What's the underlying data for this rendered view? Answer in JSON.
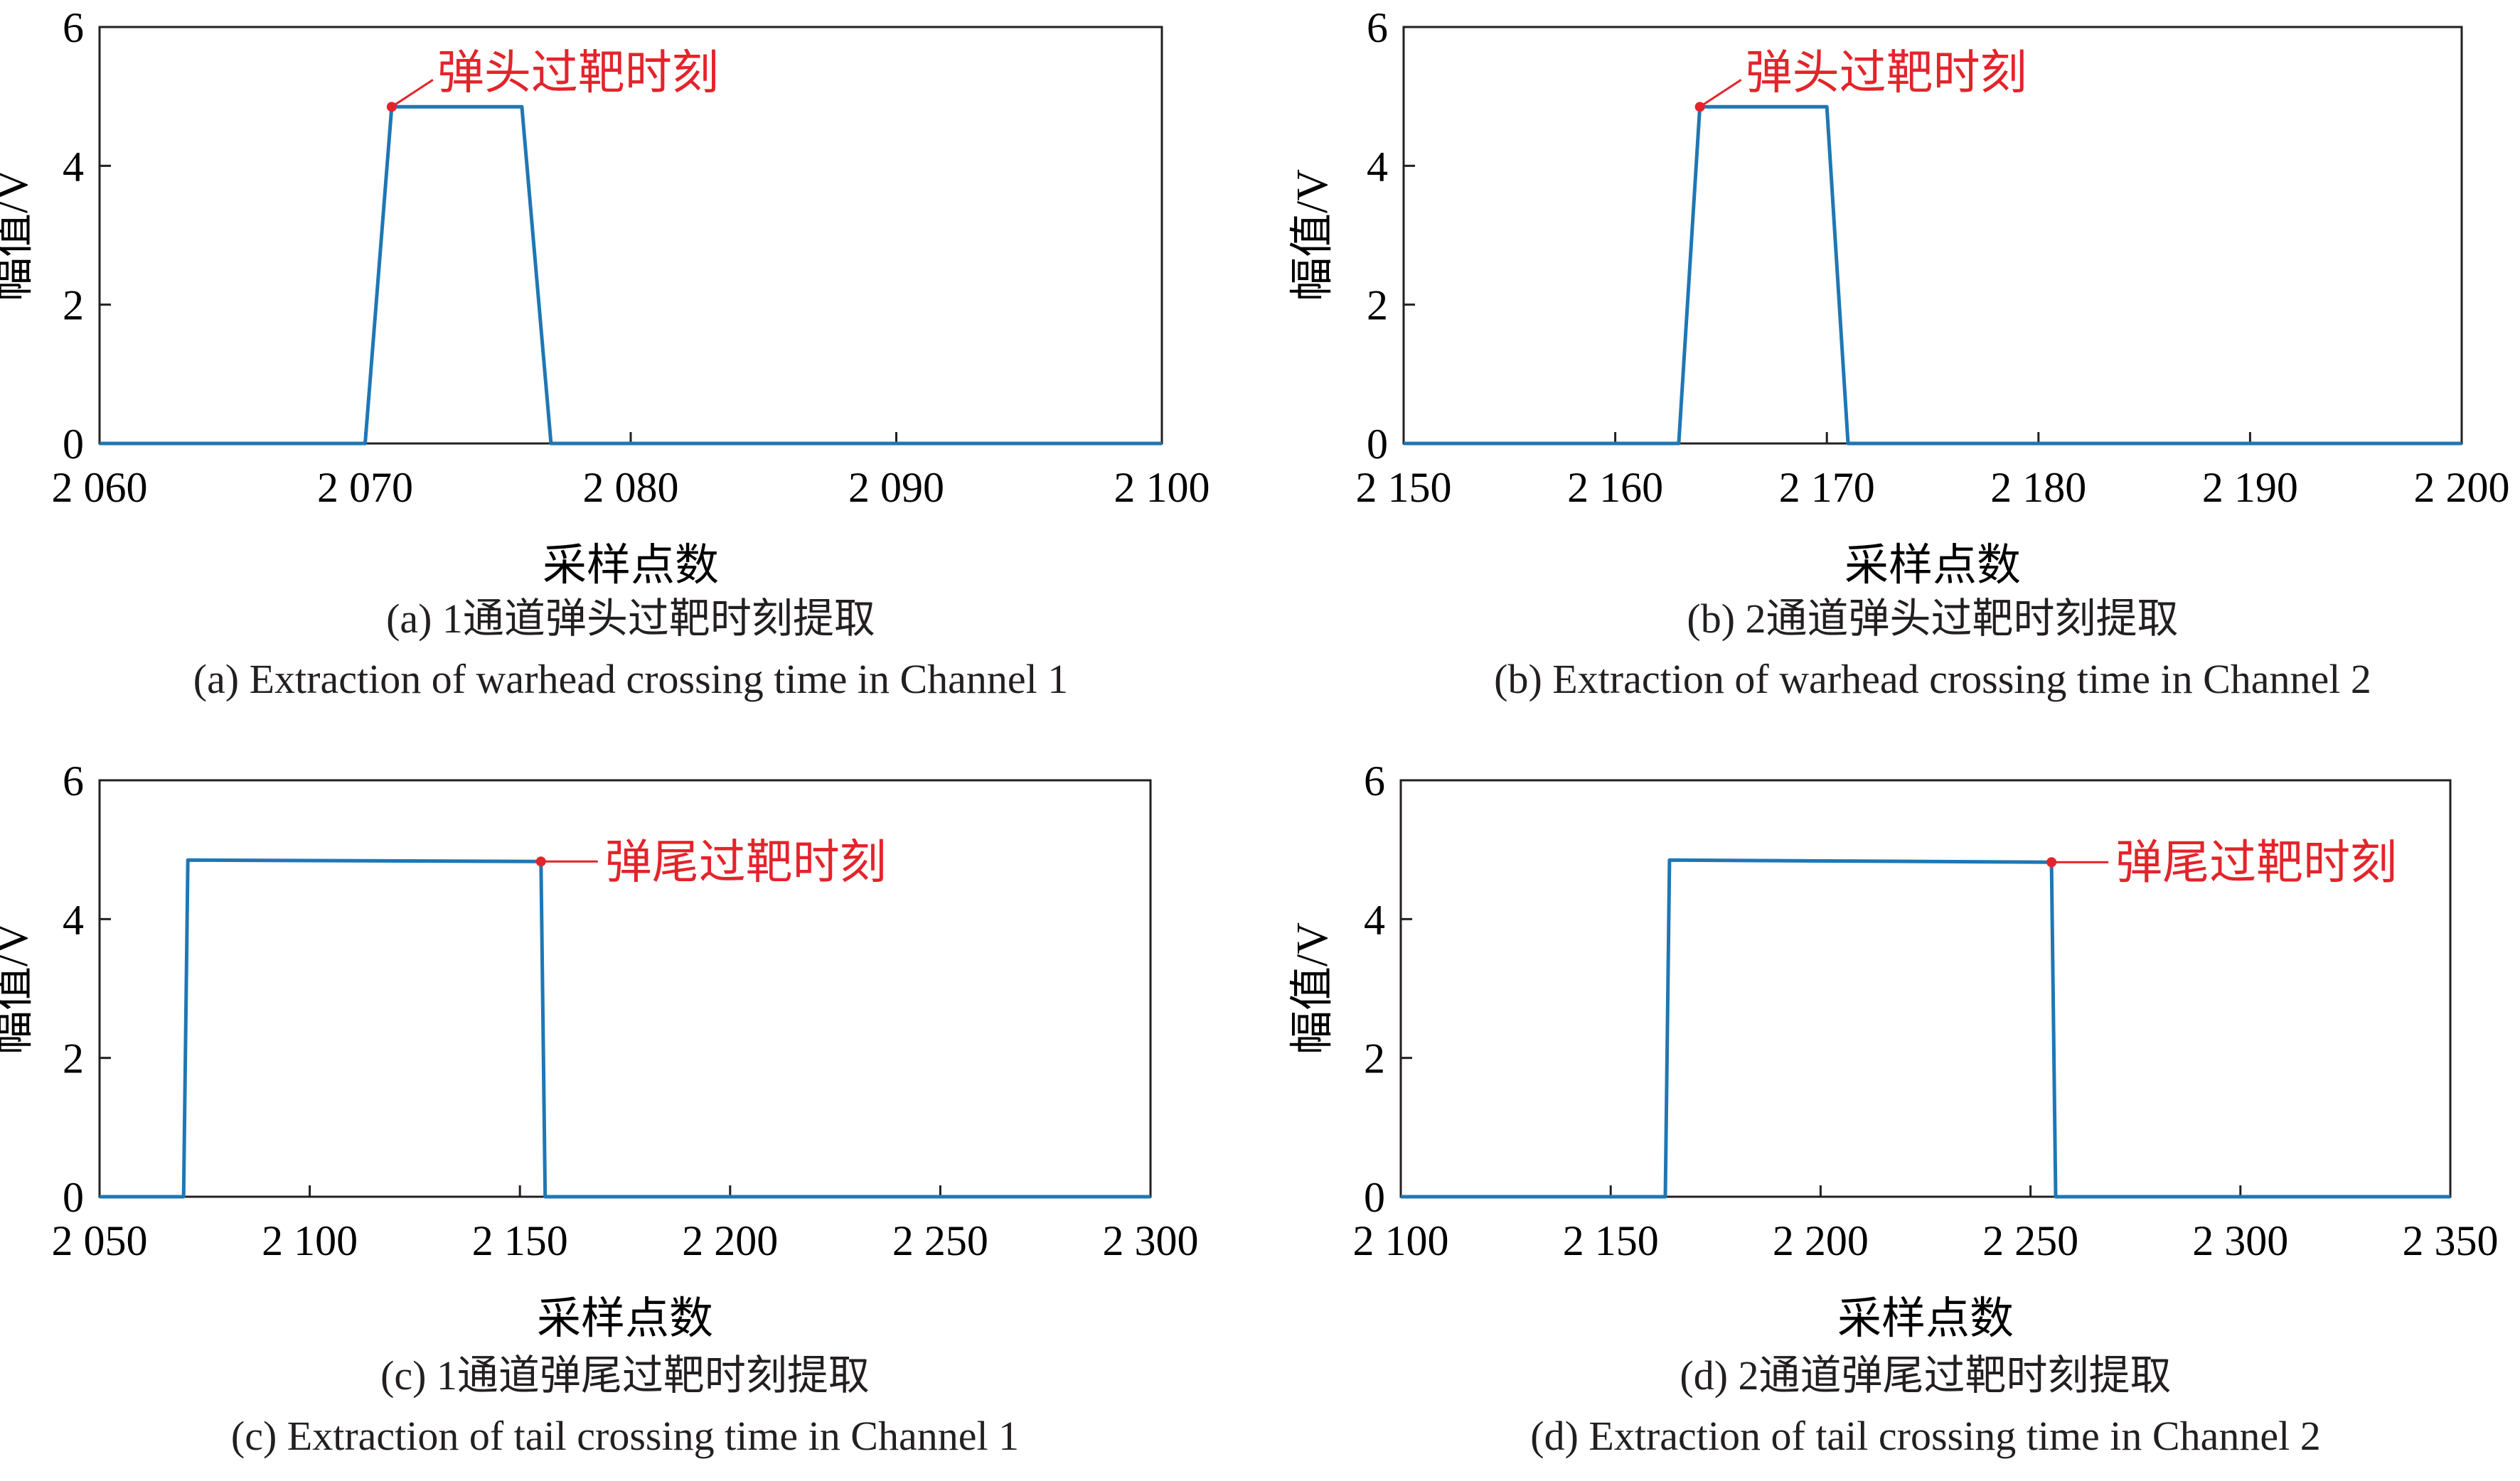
{
  "chart_data": [
    {
      "type": "line",
      "xlabel": "采样点数",
      "ylabel": "幅值/V",
      "xlim": [
        2060,
        2100
      ],
      "ylim": [
        0,
        6
      ],
      "xticks": [
        "2 060",
        "2 070",
        "2 080",
        "2 090",
        "2 100"
      ],
      "xtick_values": [
        2060,
        2070,
        2080,
        2090,
        2100
      ],
      "yticks": [
        "0",
        "2",
        "4",
        "6"
      ],
      "ytick_values": [
        0,
        2,
        4,
        6
      ],
      "series": [
        {
          "x": [
            2060,
            2070,
            2071,
            2075.9,
            2077,
            2100
          ],
          "y": [
            0,
            0,
            4.85,
            4.85,
            0,
            0
          ],
          "color": "#1f77b4"
        }
      ],
      "marker": {
        "x": 2071,
        "y": 4.85,
        "label": "弹头过靶时刻",
        "color": "#e3242b"
      },
      "caption_cn": "(a) 1通道弹头过靶时刻提取",
      "caption_en": "(a) Extraction of warhead crossing time in Channel 1"
    },
    {
      "type": "line",
      "xlabel": "采样点数",
      "ylabel": "幅值/V",
      "xlim": [
        2150,
        2200
      ],
      "ylim": [
        0,
        6
      ],
      "xticks": [
        "2 150",
        "2 160",
        "2 170",
        "2 180",
        "2 190",
        "2 200"
      ],
      "xtick_values": [
        2150,
        2160,
        2170,
        2180,
        2190,
        2200
      ],
      "yticks": [
        "0",
        "2",
        "4",
        "6"
      ],
      "ytick_values": [
        0,
        2,
        4,
        6
      ],
      "series": [
        {
          "x": [
            2150,
            2163,
            2164,
            2170,
            2171,
            2200
          ],
          "y": [
            0,
            0,
            4.85,
            4.85,
            0,
            0
          ],
          "color": "#1f77b4"
        }
      ],
      "marker": {
        "x": 2164,
        "y": 4.85,
        "label": "弹头过靶时刻",
        "color": "#e3242b"
      },
      "caption_cn": "(b) 2通道弹头过靶时刻提取",
      "caption_en": "(b) Extraction of warhead crossing time in Channel 2"
    },
    {
      "type": "line",
      "xlabel": "采样点数",
      "ylabel": "幅值/V",
      "xlim": [
        2050,
        2300
      ],
      "ylim": [
        0,
        6
      ],
      "xticks": [
        "2 050",
        "2 100",
        "2 150",
        "2 200",
        "2 250",
        "2 300"
      ],
      "xtick_values": [
        2050,
        2100,
        2150,
        2200,
        2250,
        2300
      ],
      "yticks": [
        "0",
        "2",
        "4",
        "6"
      ],
      "ytick_values": [
        0,
        2,
        4,
        6
      ],
      "series": [
        {
          "x": [
            2050,
            2070,
            2071,
            2155,
            2156,
            2300
          ],
          "y": [
            0,
            0,
            4.85,
            4.83,
            0,
            0
          ],
          "color": "#1f77b4"
        }
      ],
      "marker": {
        "x": 2155,
        "y": 4.83,
        "label": "弹尾过靶时刻",
        "color": "#e3242b"
      },
      "caption_cn": "(c) 1通道弹尾过靶时刻提取",
      "caption_en": "(c) Extraction of  tail crossing time in Channel 1"
    },
    {
      "type": "line",
      "xlabel": "采样点数",
      "ylabel": "幅值/V",
      "xlim": [
        2100,
        2350
      ],
      "ylim": [
        0,
        6
      ],
      "xticks": [
        "2 100",
        "2 150",
        "2 200",
        "2 250",
        "2 300",
        "2 350"
      ],
      "xtick_values": [
        2100,
        2150,
        2200,
        2250,
        2300,
        2350
      ],
      "yticks": [
        "0",
        "2",
        "4",
        "6"
      ],
      "ytick_values": [
        0,
        2,
        4,
        6
      ],
      "series": [
        {
          "x": [
            2100,
            2163,
            2164,
            2255,
            2256,
            2350
          ],
          "y": [
            0,
            0,
            4.85,
            4.82,
            0,
            0
          ],
          "color": "#1f77b4"
        }
      ],
      "marker": {
        "x": 2255,
        "y": 4.82,
        "label": "弹尾过靶时刻",
        "color": "#e3242b"
      },
      "caption_cn": "(d) 2通道弹尾过靶时刻提取",
      "caption_en": "(d) Extraction of  tail crossing time in Channel 2"
    }
  ]
}
